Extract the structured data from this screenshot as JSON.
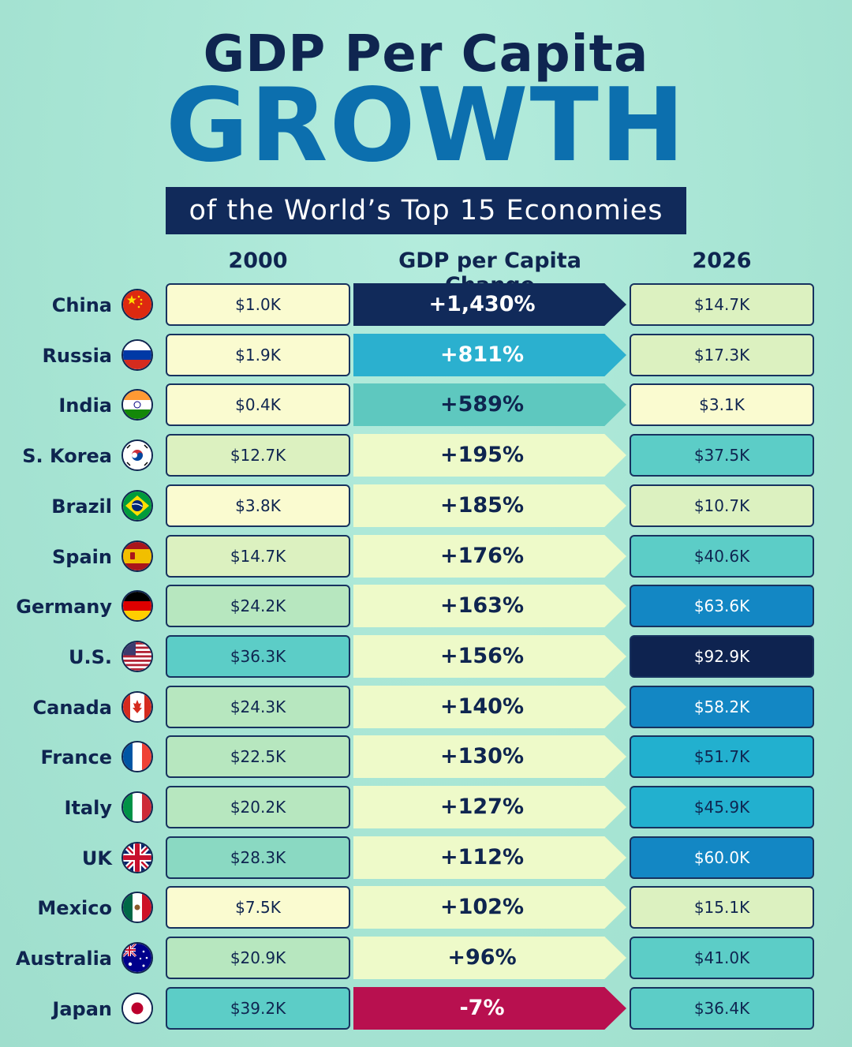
{
  "header": {
    "title_line1": "GDP Per Capita",
    "title_line2": "GROWTH",
    "subtitle": "of the World’s Top 15 Economies"
  },
  "columns": {
    "left": "2000",
    "middle": "GDP per Capita Change",
    "right": "2026"
  },
  "chart_data": {
    "type": "table",
    "title": "GDP Per Capita GROWTH",
    "subtitle": "of the World’s Top 15 Economies",
    "columns": [
      "2000",
      "GDP per Capita Change",
      "2026"
    ],
    "rows": [
      {
        "country": "China",
        "flag": "china-flag",
        "gdp_2000": "$1.0K",
        "change": "+1,430%",
        "gdp_2026": "$14.7K",
        "change_value": 1430,
        "v2000": 1.0,
        "v2026": 14.7
      },
      {
        "country": "Russia",
        "flag": "russia-flag",
        "gdp_2000": "$1.9K",
        "change": "+811%",
        "gdp_2026": "$17.3K",
        "change_value": 811,
        "v2000": 1.9,
        "v2026": 17.3
      },
      {
        "country": "India",
        "flag": "india-flag",
        "gdp_2000": "$0.4K",
        "change": "+589%",
        "gdp_2026": "$3.1K",
        "change_value": 589,
        "v2000": 0.4,
        "v2026": 3.1
      },
      {
        "country": "S. Korea",
        "flag": "south-korea-flag",
        "gdp_2000": "$12.7K",
        "change": "+195%",
        "gdp_2026": "$37.5K",
        "change_value": 195,
        "v2000": 12.7,
        "v2026": 37.5
      },
      {
        "country": "Brazil",
        "flag": "brazil-flag",
        "gdp_2000": "$3.8K",
        "change": "+185%",
        "gdp_2026": "$10.7K",
        "change_value": 185,
        "v2000": 3.8,
        "v2026": 10.7
      },
      {
        "country": "Spain",
        "flag": "spain-flag",
        "gdp_2000": "$14.7K",
        "change": "+176%",
        "gdp_2026": "$40.6K",
        "change_value": 176,
        "v2000": 14.7,
        "v2026": 40.6
      },
      {
        "country": "Germany",
        "flag": "germany-flag",
        "gdp_2000": "$24.2K",
        "change": "+163%",
        "gdp_2026": "$63.6K",
        "change_value": 163,
        "v2000": 24.2,
        "v2026": 63.6
      },
      {
        "country": "U.S.",
        "flag": "usa-flag",
        "gdp_2000": "$36.3K",
        "change": "+156%",
        "gdp_2026": "$92.9K",
        "change_value": 156,
        "v2000": 36.3,
        "v2026": 92.9
      },
      {
        "country": "Canada",
        "flag": "canada-flag",
        "gdp_2000": "$24.3K",
        "change": "+140%",
        "gdp_2026": "$58.2K",
        "change_value": 140,
        "v2000": 24.3,
        "v2026": 58.2
      },
      {
        "country": "France",
        "flag": "france-flag",
        "gdp_2000": "$22.5K",
        "change": "+130%",
        "gdp_2026": "$51.7K",
        "change_value": 130,
        "v2000": 22.5,
        "v2026": 51.7
      },
      {
        "country": "Italy",
        "flag": "italy-flag",
        "gdp_2000": "$20.2K",
        "change": "+127%",
        "gdp_2026": "$45.9K",
        "change_value": 127,
        "v2000": 20.2,
        "v2026": 45.9
      },
      {
        "country": "UK",
        "flag": "uk-flag",
        "gdp_2000": "$28.3K",
        "change": "+112%",
        "gdp_2026": "$60.0K",
        "change_value": 112,
        "v2000": 28.3,
        "v2026": 60.0
      },
      {
        "country": "Mexico",
        "flag": "mexico-flag",
        "gdp_2000": "$7.5K",
        "change": "+102%",
        "gdp_2026": "$15.1K",
        "change_value": 102,
        "v2000": 7.5,
        "v2026": 15.1
      },
      {
        "country": "Australia",
        "flag": "australia-flag",
        "gdp_2000": "$20.9K",
        "change": "+96%",
        "gdp_2026": "$41.0K",
        "change_value": 96,
        "v2000": 20.9,
        "v2026": 41.0
      },
      {
        "country": "Japan",
        "flag": "japan-flag",
        "gdp_2000": "$39.2K",
        "change": "-7%",
        "gdp_2026": "$36.4K",
        "change_value": -7,
        "v2000": 39.2,
        "v2026": 36.4
      }
    ]
  },
  "colors": {
    "navy": "#112a5a",
    "accent_blue": "#0c6fae",
    "negative": "#b8104f"
  }
}
